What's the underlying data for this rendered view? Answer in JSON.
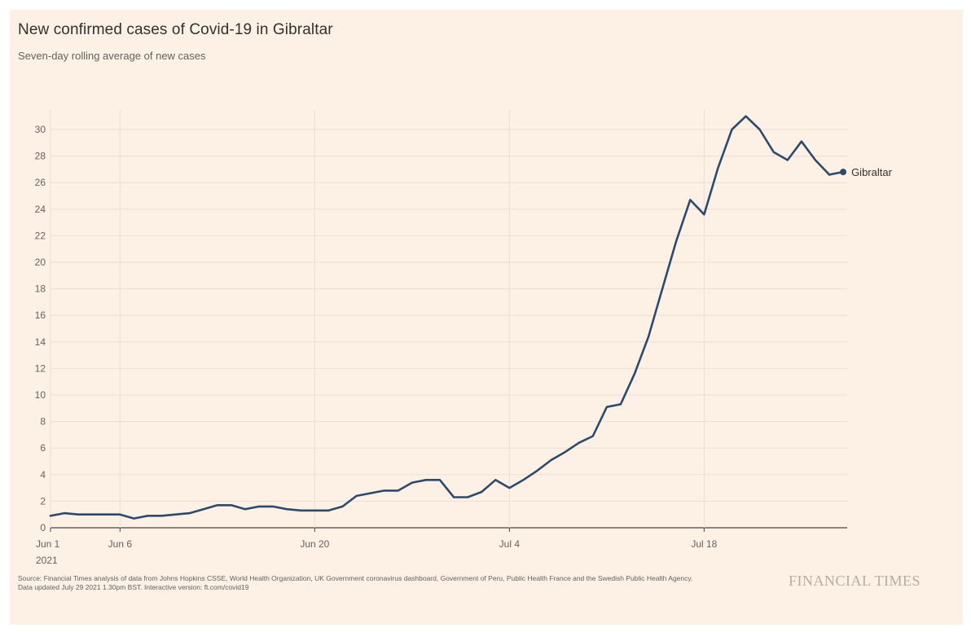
{
  "header": {
    "title": "New confirmed cases of Covid-19 in Gibraltar",
    "subtitle": "Seven-day rolling average of new cases"
  },
  "footer": {
    "source": "Source: Financial Times analysis of data from Johns Hopkins CSSE, World Health Organization, UK Government coronavirus dashboard, Government of Peru, Public Health France and the Swedish Public Health Agency.",
    "updated": "Data updated July 29 2021 1.30pm BST. Interactive version: ft.com/covid19",
    "brand": "FINANCIAL TIMES"
  },
  "colors": {
    "background": "#fdf1e6",
    "line": "#2e4a6b",
    "grid": "#ebdfd5",
    "text": "#66605c"
  },
  "chart_data": {
    "type": "line",
    "title": "New confirmed cases of Covid-19 in Gibraltar",
    "subtitle": "Seven-day rolling average of new cases",
    "xlabel": "",
    "ylabel": "",
    "ylim": [
      0,
      31
    ],
    "yticks": [
      0,
      2,
      4,
      6,
      8,
      10,
      12,
      14,
      16,
      18,
      20,
      22,
      24,
      26,
      28,
      30
    ],
    "xlim": [
      "2021-06-01",
      "2021-07-27"
    ],
    "xticks": [
      {
        "date": "2021-06-01",
        "label": "Jun 1",
        "sublabel": "2021"
      },
      {
        "date": "2021-06-06",
        "label": "Jun 6"
      },
      {
        "date": "2021-06-20",
        "label": "Jun 20"
      },
      {
        "date": "2021-07-04",
        "label": "Jul 4"
      },
      {
        "date": "2021-07-18",
        "label": "Jul 18"
      }
    ],
    "grid": true,
    "legend": "end-of-line label",
    "series": [
      {
        "name": "Gibraltar",
        "x": [
          "2021-06-01",
          "2021-06-02",
          "2021-06-03",
          "2021-06-04",
          "2021-06-05",
          "2021-06-06",
          "2021-06-07",
          "2021-06-08",
          "2021-06-09",
          "2021-06-10",
          "2021-06-11",
          "2021-06-12",
          "2021-06-13",
          "2021-06-14",
          "2021-06-15",
          "2021-06-16",
          "2021-06-17",
          "2021-06-18",
          "2021-06-19",
          "2021-06-20",
          "2021-06-21",
          "2021-06-22",
          "2021-06-23",
          "2021-06-24",
          "2021-06-25",
          "2021-06-26",
          "2021-06-27",
          "2021-06-28",
          "2021-06-29",
          "2021-06-30",
          "2021-07-01",
          "2021-07-02",
          "2021-07-03",
          "2021-07-04",
          "2021-07-05",
          "2021-07-06",
          "2021-07-07",
          "2021-07-08",
          "2021-07-09",
          "2021-07-10",
          "2021-07-11",
          "2021-07-12",
          "2021-07-13",
          "2021-07-14",
          "2021-07-15",
          "2021-07-16",
          "2021-07-17",
          "2021-07-18",
          "2021-07-19",
          "2021-07-20",
          "2021-07-21",
          "2021-07-22",
          "2021-07-23",
          "2021-07-24",
          "2021-07-25",
          "2021-07-26",
          "2021-07-27"
        ],
        "values": [
          0.9,
          1.1,
          1.0,
          1.0,
          1.0,
          1.0,
          0.7,
          0.9,
          0.9,
          1.0,
          1.1,
          1.4,
          1.7,
          1.7,
          1.4,
          1.6,
          1.6,
          1.4,
          1.3,
          1.3,
          1.3,
          1.6,
          2.4,
          2.6,
          2.8,
          2.8,
          3.4,
          3.6,
          3.6,
          2.3,
          2.3,
          2.7,
          3.6,
          3.0,
          3.6,
          4.3,
          5.1,
          5.7,
          6.4,
          6.9,
          9.1,
          9.3,
          11.6,
          14.4,
          18.0,
          21.6,
          24.7,
          23.6,
          27.1,
          30.0,
          31.0,
          30.0,
          28.3,
          27.7,
          29.1,
          27.7,
          26.6
        ]
      }
    ],
    "end_marker": {
      "date": "2021-07-28",
      "value": 26.8
    }
  }
}
